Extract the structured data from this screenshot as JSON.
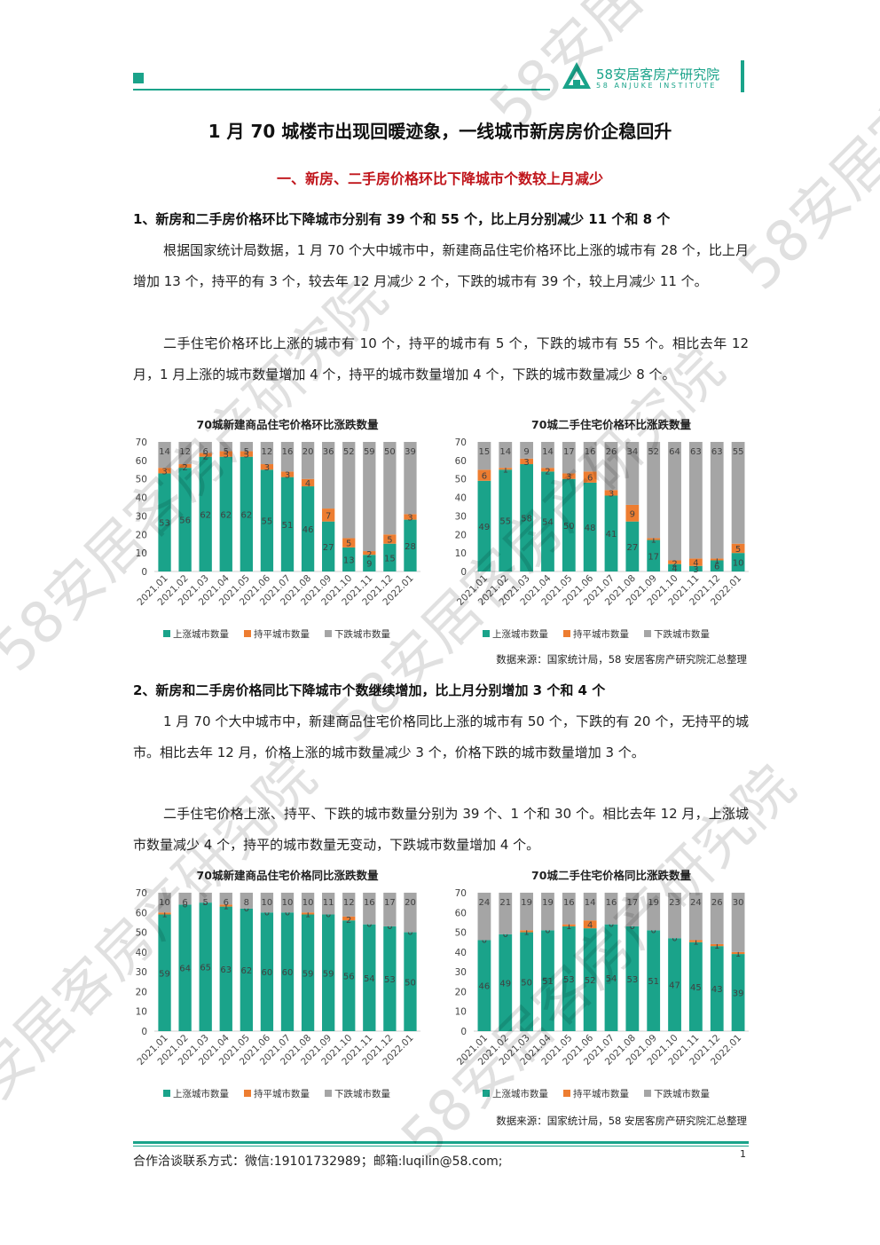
{
  "header": {
    "logo_cn": "58安居客房产研究院",
    "logo_en": "58 ANJUKE INSTITUTE"
  },
  "title": "1 月 70 城楼市出现回暖迹象，一线城市新房房价企稳回升",
  "section1": "一、新房、二手房价格环比下降城市个数较上月减少",
  "sub1": "1、新房和二手房价格环比下降城市分别有 39 个和 55 个，比上月分别减少 11 个和 8 个",
  "para1": "根据国家统计局数据，1 月 70 个大中城市中，新建商品住宅价格环比上涨的城市有 28 个，比上月增加 13 个，持平的有 3 个，较去年 12 月减少 2 个，下跌的城市有 39 个，较上月减少 11 个。",
  "para2": "二手住宅价格环比上涨的城市有 10 个，持平的城市有 5 个，下跌的城市有 55 个。相比去年 12 月，1 月上涨的城市数量增加 4 个，持平的城市数量增加 4 个，下跌的城市数量减少 8 个。",
  "source1": "数据来源：国家统计局，58 安居客房产研究院汇总整理",
  "sub2": "2、新房和二手房价格同比下降城市个数继续增加，比上月分别增加 3 个和 4 个",
  "para3": "1 月 70 个大中城市中，新建商品住宅价格同比上涨的城市有 50 个，下跌的有 20 个，无持平的城市。相比去年 12 月，价格上涨的城市数量减少 3 个，价格下跌的城市数量增加 3 个。",
  "para4": "二手住宅价格上涨、持平、下跌的城市数量分别为 39 个、1 个和 30 个。相比去年 12 月，上涨城市数量减少 4 个，持平的城市数量无变动，下跌城市数量增加 4 个。",
  "source2": "数据来源：国家统计局，58 安居客房产研究院汇总整理",
  "footer": {
    "contact": "合作洽谈联系方式：微信:19101732989；邮箱:luqilin@58.com;",
    "page": "1"
  },
  "watermark_text": "58安居客房产研究院",
  "colors": {
    "up": "#1aa38a",
    "flat": "#ed7d31",
    "down": "#a5a5a5",
    "accent": "#1aa38a",
    "section_red": "#c0151b"
  },
  "chart_data": [
    {
      "type": "bar",
      "title": "70城新建商品住宅价格环比涨跌数量",
      "categories": [
        "2021.01",
        "2021.02",
        "2021.03",
        "2021.04",
        "2021.05",
        "2021.06",
        "2021.07",
        "2021.08",
        "2021.09",
        "2021.10",
        "2021.11",
        "2021.12",
        "2022.01"
      ],
      "ylim": [
        0,
        70
      ],
      "yticks": [
        0,
        10,
        20,
        30,
        40,
        50,
        60,
        70
      ],
      "stacked": true,
      "legend_position": "bottom",
      "series": [
        {
          "name": "上涨城市数量",
          "values": [
            53,
            56,
            62,
            62,
            62,
            55,
            51,
            46,
            27,
            13,
            9,
            15,
            28
          ]
        },
        {
          "name": "持平城市数量",
          "values": [
            3,
            2,
            2,
            3,
            3,
            3,
            3,
            4,
            7,
            5,
            2,
            5,
            3
          ]
        },
        {
          "name": "下跌城市数量",
          "values": [
            14,
            12,
            6,
            5,
            5,
            12,
            16,
            20,
            36,
            52,
            59,
            50,
            39
          ]
        }
      ]
    },
    {
      "type": "bar",
      "title": "70城二手住宅价格环比涨跌数量",
      "categories": [
        "2021.01",
        "2021.02",
        "2021.03",
        "2021.04",
        "2021.05",
        "2021.06",
        "2021.07",
        "2021.08",
        "2021.09",
        "2021.10",
        "2021.11",
        "2021.12",
        "2022.01"
      ],
      "ylim": [
        0,
        70
      ],
      "yticks": [
        0,
        10,
        20,
        30,
        40,
        50,
        60,
        70
      ],
      "stacked": true,
      "legend_position": "bottom",
      "series": [
        {
          "name": "上涨城市数量",
          "values": [
            49,
            55,
            58,
            54,
            50,
            48,
            41,
            27,
            17,
            4,
            3,
            6,
            10
          ]
        },
        {
          "name": "持平城市数量",
          "values": [
            6,
            1,
            3,
            2,
            3,
            6,
            3,
            9,
            1,
            2,
            4,
            1,
            5
          ]
        },
        {
          "name": "下跌城市数量",
          "values": [
            15,
            14,
            9,
            14,
            17,
            16,
            26,
            34,
            52,
            64,
            63,
            63,
            55
          ]
        }
      ]
    },
    {
      "type": "bar",
      "title": "70城新建商品住宅价格同比涨跌数量",
      "categories": [
        "2021.01",
        "2021.02",
        "2021.03",
        "2021.04",
        "2021.05",
        "2021.06",
        "2021.07",
        "2021.08",
        "2021.09",
        "2021.10",
        "2021.11",
        "2021.12",
        "2022.01"
      ],
      "ylim": [
        0,
        70
      ],
      "yticks": [
        0,
        10,
        20,
        30,
        40,
        50,
        60,
        70
      ],
      "stacked": true,
      "legend_position": "bottom",
      "series": [
        {
          "name": "上涨城市数量",
          "values": [
            59,
            64,
            65,
            63,
            62,
            60,
            60,
            59,
            59,
            56,
            54,
            53,
            50
          ]
        },
        {
          "name": "持平城市数量",
          "values": [
            1,
            0,
            0,
            1,
            0,
            0,
            0,
            1,
            0,
            2,
            0,
            0,
            0
          ]
        },
        {
          "name": "下跌城市数量",
          "values": [
            10,
            6,
            5,
            6,
            8,
            10,
            10,
            10,
            11,
            12,
            16,
            17,
            20
          ]
        }
      ]
    },
    {
      "type": "bar",
      "title": "70城二手住宅价格同比涨跌数量",
      "categories": [
        "2021.01",
        "2021.02",
        "2021.03",
        "2021.04",
        "2021.05",
        "2021.06",
        "2021.07",
        "2021.08",
        "2021.09",
        "2021.10",
        "2021.11",
        "2021.12",
        "2022.01"
      ],
      "ylim": [
        0,
        70
      ],
      "yticks": [
        0,
        10,
        20,
        30,
        40,
        50,
        60,
        70
      ],
      "stacked": true,
      "legend_position": "bottom",
      "series": [
        {
          "name": "上涨城市数量",
          "values": [
            46,
            49,
            50,
            51,
            53,
            52,
            54,
            53,
            51,
            47,
            45,
            43,
            39
          ]
        },
        {
          "name": "持平城市数量",
          "values": [
            0,
            0,
            1,
            0,
            1,
            4,
            0,
            0,
            0,
            0,
            1,
            1,
            1
          ]
        },
        {
          "name": "下跌城市数量",
          "values": [
            24,
            21,
            19,
            19,
            16,
            14,
            16,
            17,
            19,
            23,
            24,
            26,
            30
          ]
        }
      ]
    }
  ]
}
